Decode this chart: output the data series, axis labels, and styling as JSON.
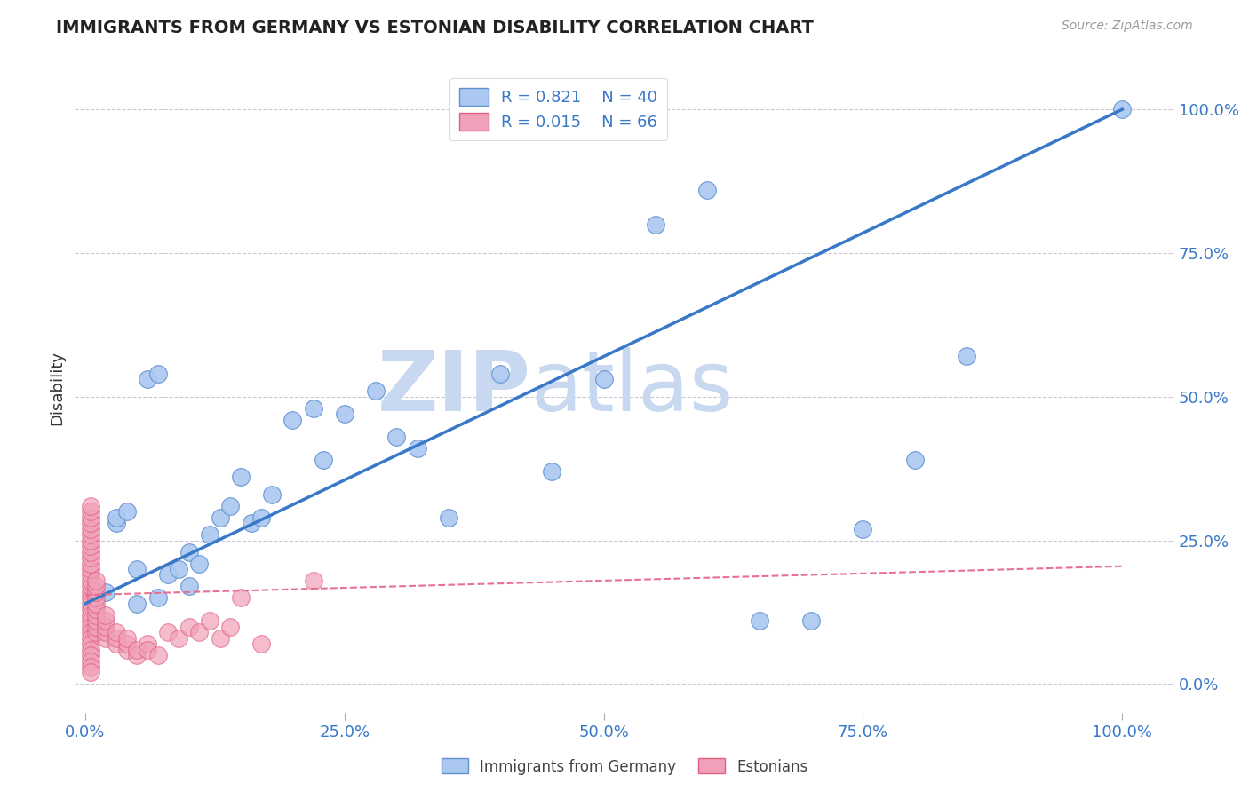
{
  "title": "IMMIGRANTS FROM GERMANY VS ESTONIAN DISABILITY CORRELATION CHART",
  "source_text": "Source: ZipAtlas.com",
  "ylabel": "Disability",
  "blue_label": "Immigrants from Germany",
  "pink_label": "Estonians",
  "blue_R": 0.821,
  "blue_N": 40,
  "pink_R": 0.015,
  "pink_N": 66,
  "watermark_zip": "ZIP",
  "watermark_atlas": "atlas",
  "blue_scatter_x": [
    0.02,
    0.03,
    0.03,
    0.04,
    0.05,
    0.06,
    0.07,
    0.08,
    0.09,
    0.1,
    0.11,
    0.12,
    0.13,
    0.14,
    0.15,
    0.16,
    0.17,
    0.18,
    0.2,
    0.22,
    0.23,
    0.25,
    0.28,
    0.3,
    0.32,
    0.35,
    0.4,
    0.45,
    0.5,
    0.55,
    0.6,
    0.65,
    0.7,
    0.75,
    0.8,
    0.85,
    0.05,
    0.07,
    0.1,
    1.0
  ],
  "blue_scatter_y": [
    0.16,
    0.28,
    0.29,
    0.3,
    0.2,
    0.53,
    0.54,
    0.19,
    0.2,
    0.23,
    0.21,
    0.26,
    0.29,
    0.31,
    0.36,
    0.28,
    0.29,
    0.33,
    0.46,
    0.48,
    0.39,
    0.47,
    0.51,
    0.43,
    0.41,
    0.29,
    0.54,
    0.37,
    0.53,
    0.8,
    0.86,
    0.11,
    0.11,
    0.27,
    0.39,
    0.57,
    0.14,
    0.15,
    0.17,
    1.0
  ],
  "pink_scatter_x": [
    0.005,
    0.005,
    0.005,
    0.005,
    0.005,
    0.005,
    0.005,
    0.005,
    0.005,
    0.005,
    0.005,
    0.005,
    0.005,
    0.005,
    0.005,
    0.005,
    0.005,
    0.005,
    0.005,
    0.005,
    0.005,
    0.005,
    0.005,
    0.005,
    0.005,
    0.005,
    0.005,
    0.005,
    0.005,
    0.005,
    0.01,
    0.01,
    0.01,
    0.01,
    0.01,
    0.01,
    0.01,
    0.01,
    0.01,
    0.01,
    0.02,
    0.02,
    0.02,
    0.02,
    0.02,
    0.03,
    0.03,
    0.03,
    0.04,
    0.04,
    0.04,
    0.05,
    0.05,
    0.06,
    0.06,
    0.07,
    0.08,
    0.09,
    0.1,
    0.11,
    0.12,
    0.13,
    0.14,
    0.15,
    0.17,
    0.22
  ],
  "pink_scatter_y": [
    0.15,
    0.16,
    0.17,
    0.18,
    0.19,
    0.2,
    0.21,
    0.13,
    0.14,
    0.12,
    0.11,
    0.1,
    0.09,
    0.08,
    0.07,
    0.06,
    0.05,
    0.04,
    0.03,
    0.02,
    0.22,
    0.23,
    0.24,
    0.25,
    0.26,
    0.27,
    0.28,
    0.29,
    0.3,
    0.31,
    0.09,
    0.1,
    0.11,
    0.12,
    0.13,
    0.14,
    0.15,
    0.16,
    0.17,
    0.18,
    0.08,
    0.09,
    0.1,
    0.11,
    0.12,
    0.07,
    0.08,
    0.09,
    0.06,
    0.07,
    0.08,
    0.05,
    0.06,
    0.07,
    0.06,
    0.05,
    0.09,
    0.08,
    0.1,
    0.09,
    0.11,
    0.08,
    0.1,
    0.15,
    0.07,
    0.18
  ],
  "blue_line_color": "#3878c8",
  "pink_line_color": "#e87090",
  "blue_scatter_facecolor": "#aac8f0",
  "blue_scatter_edgecolor": "#6090d0",
  "pink_scatter_facecolor": "#f0a0b8",
  "pink_scatter_edgecolor": "#e06080",
  "grid_color": "#c8c8d8",
  "title_color": "#222222",
  "axis_tick_color": "#3878c8",
  "watermark_color": "#c8d8f0",
  "xlim": [
    -0.01,
    1.05
  ],
  "ylim": [
    -0.05,
    1.08
  ],
  "xticks": [
    0.0,
    0.25,
    0.5,
    0.75,
    1.0
  ],
  "xtick_labels": [
    "0.0%",
    "25.0%",
    "50.0%",
    "75.0%",
    "100.0%"
  ],
  "ytick_positions": [
    0.0,
    0.25,
    0.5,
    0.75,
    1.0
  ],
  "ytick_labels_right": [
    "0.0%",
    "25.0%",
    "50.0%",
    "75.0%",
    "100.0%"
  ],
  "blue_trend_x": [
    0.0,
    1.0
  ],
  "blue_trend_y": [
    0.14,
    1.0
  ],
  "pink_trend_x": [
    0.0,
    1.0
  ],
  "pink_trend_y": [
    0.155,
    0.205
  ]
}
